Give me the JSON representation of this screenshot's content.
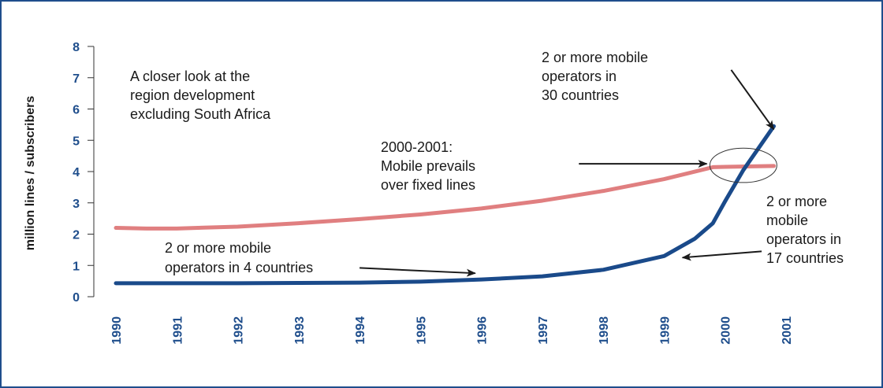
{
  "colors": {
    "frame": "#1f4e8c",
    "axis_text": "#1f4e8c",
    "mobile_series": "#1a4a8a",
    "fixed_series": "#e07f80",
    "annotation_text": "#1a1a1a",
    "arrow": "#1a1a1a"
  },
  "chart_data": {
    "type": "line",
    "title": "",
    "xlabel": "",
    "ylabel": "million lines / subscribers",
    "ylim": [
      0,
      8
    ],
    "xlim": [
      1990,
      2001
    ],
    "y_ticks": [
      "0",
      "1",
      "2",
      "3",
      "4",
      "5",
      "6",
      "7",
      "8"
    ],
    "x_ticks": [
      "1990",
      "1991",
      "1992",
      "1993",
      "1994",
      "1995",
      "1996",
      "1997",
      "1998",
      "1999",
      "2000",
      "2001"
    ],
    "grid": false,
    "legend": "none",
    "series": [
      {
        "color": "#e07f80",
        "x": [
          1990,
          1990.5,
          1991,
          1992,
          1993,
          1994,
          1995,
          1996,
          1997,
          1998,
          1999,
          1999.8,
          2000,
          2000.8
        ],
        "y": [
          2.2,
          2.18,
          2.18,
          2.24,
          2.35,
          2.48,
          2.63,
          2.82,
          3.07,
          3.38,
          3.76,
          4.14,
          4.15,
          4.18
        ]
      },
      {
        "color": "#1a4a8a",
        "x": [
          1990,
          1991,
          1992,
          1993,
          1994,
          1995,
          1996,
          1997,
          1998,
          1999,
          1999.5,
          1999.8,
          2000,
          2000.3,
          2000.8
        ],
        "y": [
          0.43,
          0.43,
          0.43,
          0.44,
          0.45,
          0.48,
          0.55,
          0.65,
          0.86,
          1.3,
          1.85,
          2.35,
          3.05,
          4.05,
          5.45
        ]
      }
    ],
    "annotations": [
      {
        "lines": [
          "A closer look at the",
          "region development",
          "excluding South Africa"
        ]
      },
      {
        "lines": [
          "2 or more mobile",
          "operators in",
          "30 countries"
        ],
        "arrow": {
          "from": [
            2000.1,
            7.25
          ],
          "to": [
            2000.8,
            5.35
          ]
        }
      },
      {
        "lines": [
          "2000-2001:",
          "Mobile prevails",
          "over fixed lines"
        ],
        "arrow": {
          "from": [
            1997.6,
            4.25
          ],
          "to": [
            1999.7,
            4.25
          ]
        }
      },
      {
        "lines": [
          "2 or more",
          "mobile",
          "operators in",
          "17 countries"
        ],
        "arrow": {
          "from": [
            2000.6,
            1.45
          ],
          "to": [
            1999.3,
            1.25
          ]
        }
      },
      {
        "lines": [
          "2 or more mobile",
          "operators in 4 countries"
        ],
        "arrow": {
          "from": [
            1994.0,
            0.92
          ],
          "to": [
            1995.9,
            0.75
          ]
        }
      }
    ],
    "highlight": {
      "shape": "ellipse",
      "center": [
        2000.3,
        4.2
      ],
      "rx_years": 0.55,
      "ry_units": 0.55
    }
  }
}
